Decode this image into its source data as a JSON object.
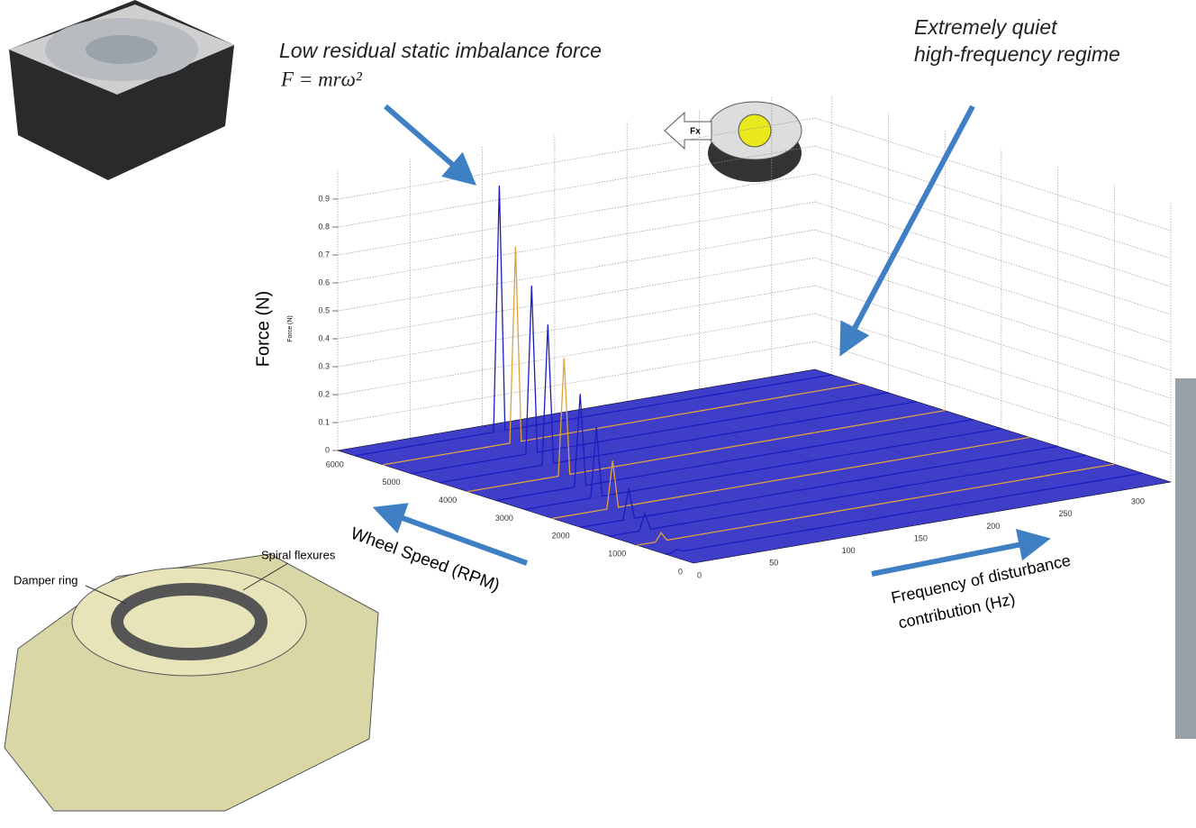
{
  "chart_data": {
    "type": "waterfall3d",
    "zlabel": "Force (N)",
    "ylabel": "Wheel Speed (RPM)",
    "xlabel": [
      "Frequency of disturbance",
      "contribution (Hz)"
    ],
    "xlim": [
      0,
      330
    ],
    "xticks": [
      0,
      50,
      100,
      150,
      200,
      250,
      300
    ],
    "ylim": [
      0,
      6300
    ],
    "yticks": [
      0,
      1000,
      2000,
      3000,
      4000,
      5000,
      6000
    ],
    "zlim": [
      0,
      1
    ],
    "zticks": [
      0,
      0.1,
      0.2,
      0.3,
      0.4,
      0.5,
      0.6,
      0.7,
      0.8,
      0.9
    ],
    "grid": true,
    "color": "#1c1cc0",
    "rpm": [
      6000,
      5500,
      5000,
      4500,
      4000,
      3500,
      3000,
      2500,
      2000,
      1500,
      1000,
      500
    ],
    "freq_hz": [
      100,
      91.7,
      83.3,
      75,
      66.7,
      58.3,
      50,
      41.7,
      33.3,
      25,
      16.7,
      8.3
    ],
    "force": [
      0.88,
      0.7,
      0.6,
      0.5,
      0.42,
      0.33,
      0.25,
      0.17,
      0.11,
      0.06,
      0.03,
      0.01
    ]
  },
  "annotations": {
    "imbalance": {
      "title": "Low residual static imbalance force",
      "formula": "F = mrω²"
    },
    "quiet": [
      "Extremely quiet",
      "high-frequency regime"
    ],
    "fx": "Fx",
    "diagram": {
      "damper": "Damper ring",
      "flexures": "Spiral flexures"
    }
  }
}
